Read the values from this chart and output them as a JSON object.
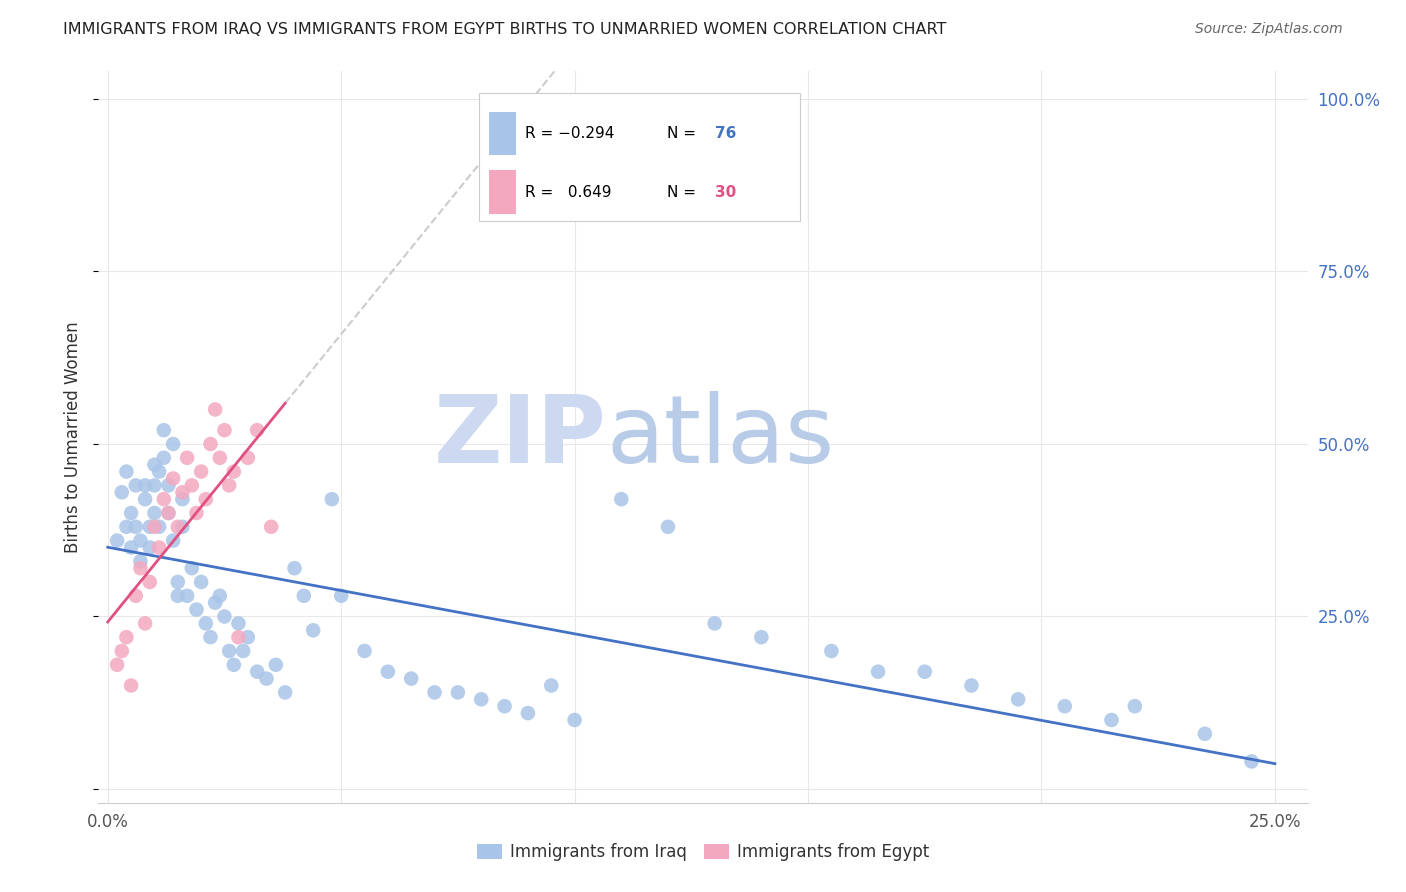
{
  "title": "IMMIGRANTS FROM IRAQ VS IMMIGRANTS FROM EGYPT BIRTHS TO UNMARRIED WOMEN CORRELATION CHART",
  "source": "Source: ZipAtlas.com",
  "ylabel": "Births to Unmarried Women",
  "xlim": [
    0.0,
    0.25
  ],
  "ylim": [
    0.0,
    1.0
  ],
  "iraq_R": -0.294,
  "iraq_N": 76,
  "egypt_R": 0.649,
  "egypt_N": 30,
  "iraq_color": "#a8c4e8",
  "egypt_color": "#f4a8c0",
  "iraq_line_color": "#4472c4",
  "egypt_line_color": "#e05080",
  "watermark_zip_color": "#ccd9f0",
  "watermark_atlas_color": "#b8cce8",
  "iraq_scatter_x": [
    0.002,
    0.003,
    0.004,
    0.004,
    0.005,
    0.005,
    0.006,
    0.006,
    0.007,
    0.007,
    0.008,
    0.008,
    0.009,
    0.009,
    0.01,
    0.01,
    0.01,
    0.011,
    0.011,
    0.012,
    0.012,
    0.013,
    0.013,
    0.014,
    0.014,
    0.015,
    0.015,
    0.016,
    0.016,
    0.017,
    0.018,
    0.019,
    0.02,
    0.021,
    0.022,
    0.023,
    0.024,
    0.025,
    0.026,
    0.027,
    0.028,
    0.029,
    0.03,
    0.032,
    0.034,
    0.036,
    0.038,
    0.04,
    0.042,
    0.044,
    0.048,
    0.05,
    0.055,
    0.06,
    0.065,
    0.07,
    0.075,
    0.08,
    0.085,
    0.09,
    0.095,
    0.1,
    0.11,
    0.12,
    0.13,
    0.14,
    0.155,
    0.165,
    0.175,
    0.185,
    0.195,
    0.205,
    0.215,
    0.22,
    0.235,
    0.245
  ],
  "iraq_scatter_y": [
    0.36,
    0.43,
    0.46,
    0.38,
    0.35,
    0.4,
    0.44,
    0.38,
    0.36,
    0.33,
    0.44,
    0.42,
    0.38,
    0.35,
    0.47,
    0.44,
    0.4,
    0.46,
    0.38,
    0.52,
    0.48,
    0.44,
    0.4,
    0.5,
    0.36,
    0.3,
    0.28,
    0.42,
    0.38,
    0.28,
    0.32,
    0.26,
    0.3,
    0.24,
    0.22,
    0.27,
    0.28,
    0.25,
    0.2,
    0.18,
    0.24,
    0.2,
    0.22,
    0.17,
    0.16,
    0.18,
    0.14,
    0.32,
    0.28,
    0.23,
    0.42,
    0.28,
    0.2,
    0.17,
    0.16,
    0.14,
    0.14,
    0.13,
    0.12,
    0.11,
    0.15,
    0.1,
    0.42,
    0.38,
    0.24,
    0.22,
    0.2,
    0.17,
    0.17,
    0.15,
    0.13,
    0.12,
    0.1,
    0.12,
    0.08,
    0.04
  ],
  "egypt_scatter_x": [
    0.002,
    0.003,
    0.004,
    0.005,
    0.006,
    0.007,
    0.008,
    0.009,
    0.01,
    0.011,
    0.012,
    0.013,
    0.014,
    0.015,
    0.016,
    0.017,
    0.018,
    0.019,
    0.02,
    0.021,
    0.022,
    0.023,
    0.024,
    0.025,
    0.026,
    0.027,
    0.028,
    0.03,
    0.032,
    0.035
  ],
  "egypt_scatter_y": [
    0.18,
    0.2,
    0.22,
    0.15,
    0.28,
    0.32,
    0.24,
    0.3,
    0.38,
    0.35,
    0.42,
    0.4,
    0.45,
    0.38,
    0.43,
    0.48,
    0.44,
    0.4,
    0.46,
    0.42,
    0.5,
    0.55,
    0.48,
    0.52,
    0.44,
    0.46,
    0.22,
    0.48,
    0.52,
    0.38
  ],
  "legend_iraq_label": "Immigrants from Iraq",
  "legend_egypt_label": "Immigrants from Egypt"
}
